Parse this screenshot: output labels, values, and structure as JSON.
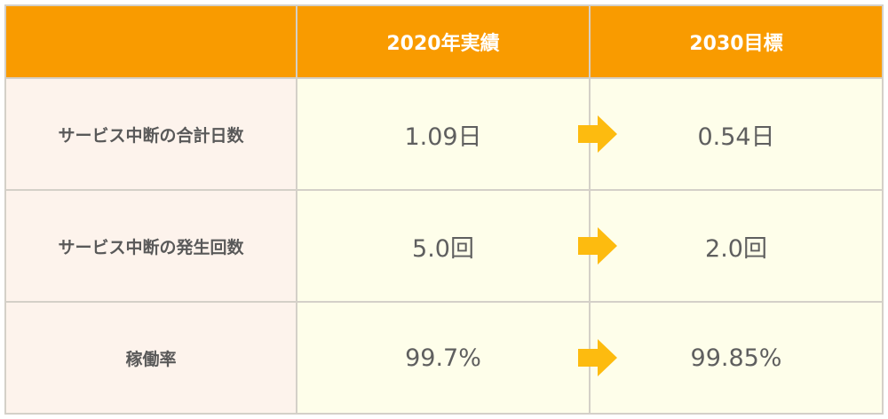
{
  "header": {
    "empty": "",
    "col2020": "2020年実績",
    "col2030": "2030目標"
  },
  "rows": [
    {
      "label": "サービス中断の合計日数",
      "v2020": "1.09日",
      "v2030": "0.54日"
    },
    {
      "label": "サービス中断の発生回数",
      "v2020": "5.0回",
      "v2030": "2.0回"
    },
    {
      "label": "稼働率",
      "v2020": "99.7%",
      "v2030": "99.85%"
    }
  ],
  "colors": {
    "header_bg": "#f99b00",
    "label_bg": "#fdf3ec",
    "value_bg": "#fefeea",
    "arrow": "#fdbb0f",
    "border": "#d4d0c8"
  },
  "icons": {
    "arrow": "right-arrow-icon"
  }
}
